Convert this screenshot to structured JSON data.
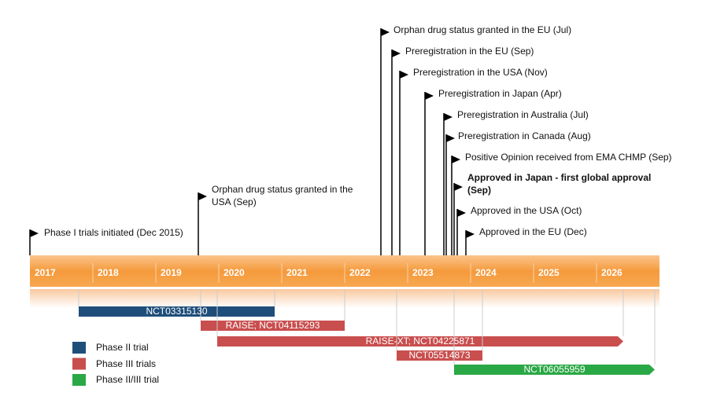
{
  "years": [
    "2017",
    "2018",
    "2019",
    "2020",
    "2021",
    "2022",
    "2023",
    "2024",
    "2025",
    "2026"
  ],
  "milestones": [
    {
      "label": "Phase I trials initiated (Dec 2015)"
    },
    {
      "label": "Orphan drug status granted in the USA (Sep)"
    },
    {
      "label": "Orphan drug status granted in the EU (Jul)"
    },
    {
      "label": "Preregistration in the EU (Sep)"
    },
    {
      "label": "Preregistration in the USA (Nov)"
    },
    {
      "label": "Preregistration in Japan (Apr)"
    },
    {
      "label": "Preregistration in Australia (Jul)"
    },
    {
      "label": "Preregistration in Canada (Aug)"
    },
    {
      "label": "Positive Opinion received from EMA CHMP (Sep)"
    },
    {
      "label": "Approved in Japan - first global approval (Sep)"
    },
    {
      "label": "Approved in the USA (Oct)"
    },
    {
      "label": "Approved in the EU (Dec)"
    }
  ],
  "trials": [
    {
      "label": "NCT03315130",
      "phase": 0
    },
    {
      "label": "RAISE; NCT04115293",
      "phase": 1
    },
    {
      "label": "RAISE-XT; NCT04225871",
      "phase": 1
    },
    {
      "label": "NCT05514873",
      "phase": 1
    },
    {
      "label": "NCT06055959",
      "phase": 2
    }
  ],
  "legend": [
    {
      "label": "Phase II trial",
      "color": "#1f4e7a"
    },
    {
      "label": "Phase III trials",
      "color": "#c94e4e"
    },
    {
      "label": "Phase II/III trial",
      "color": "#2aa845"
    }
  ]
}
